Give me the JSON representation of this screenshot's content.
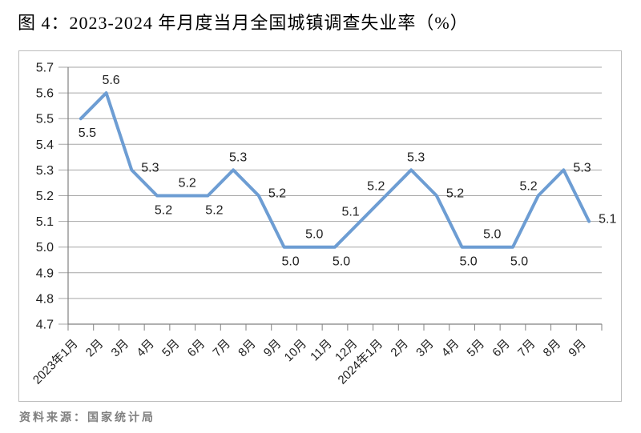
{
  "title": "图 4：2023-2024 年月度当月全国城镇调查失业率（%）",
  "source_note": "资料来源：国家统计局",
  "chart_data": {
    "type": "line",
    "title": "图 4：2023-2024 年月度当月全国城镇调查失业率（%）",
    "categories": [
      "2023年1月",
      "2月",
      "3月",
      "4月",
      "5月",
      "6月",
      "7月",
      "8月",
      "9月",
      "10月",
      "11月",
      "12月",
      "2024年1月",
      "2月",
      "3月",
      "4月",
      "5月",
      "6月",
      "7月",
      "8月",
      "9月"
    ],
    "values": [
      5.5,
      5.6,
      5.3,
      5.2,
      5.2,
      5.2,
      5.3,
      5.2,
      5.0,
      5.0,
      5.0,
      5.1,
      5.2,
      5.3,
      5.2,
      5.0,
      5.0,
      5.0,
      5.2,
      5.3,
      5.1
    ],
    "data_label_positions": [
      "below",
      "above",
      "right",
      "below",
      "above",
      "below",
      "above",
      "right",
      "below",
      "above",
      "below",
      "left",
      "left",
      "above",
      "right",
      "below",
      "above",
      "below",
      "left",
      "right",
      "right"
    ],
    "xlabel": "",
    "ylabel": "",
    "ylim": [
      4.7,
      5.7
    ],
    "ytick_step": 0.1,
    "ytick_labels": [
      "4.7",
      "4.8",
      "4.9",
      "5.0",
      "5.1",
      "5.2",
      "5.3",
      "5.4",
      "5.5",
      "5.6",
      "5.7"
    ],
    "grid": true,
    "legend": "none",
    "colors": {
      "line": "#6d9dd3",
      "grid": "#a6a6a6",
      "axis": "#808080",
      "tick_label": "#1f1f1f",
      "data_label": "#1f1f1f",
      "plot_border": "#bdbdbd"
    }
  }
}
